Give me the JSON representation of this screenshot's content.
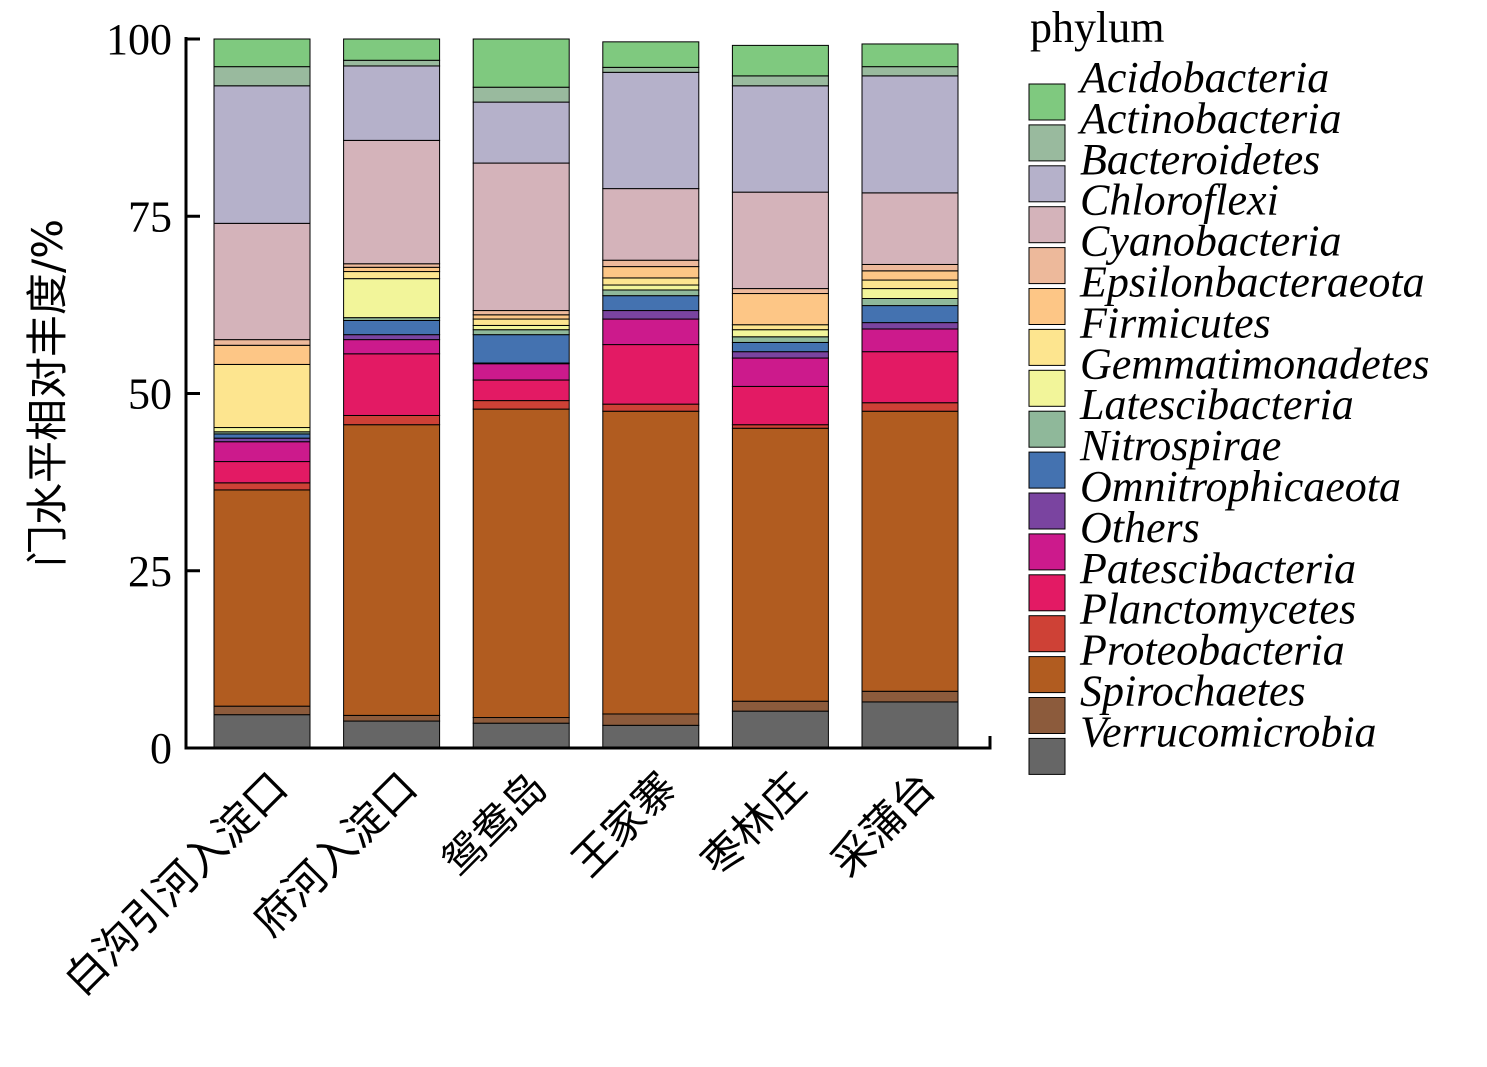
{
  "chart_data": {
    "type": "bar",
    "stacked": true,
    "ylabel": "门水平相对丰度/%",
    "ylim": [
      0,
      100
    ],
    "yticks": [
      "0",
      "25",
      "50",
      "75",
      "100"
    ],
    "legend_title": "phylum",
    "legend_position": "right",
    "categories": [
      "白沟引河入淀口",
      "府河入淀口",
      "鸳鸯岛",
      "王家寨",
      "枣林庄",
      "采蒲台"
    ],
    "series": [
      {
        "name": "Verrucomicrobia",
        "color": "#666666",
        "values": [
          4.7,
          3.8,
          3.5,
          3.2,
          5.2,
          6.5
        ]
      },
      {
        "name": "Spirochaetes",
        "color": "#8C5B3C",
        "values": [
          1.2,
          0.8,
          0.8,
          1.6,
          1.4,
          1.5
        ]
      },
      {
        "name": "Proteobacteria",
        "color": "#B15C20",
        "values": [
          30.5,
          41.0,
          43.5,
          42.7,
          38.5,
          39.5
        ]
      },
      {
        "name": "Planctomycetes",
        "color": "#CE4136",
        "values": [
          1.0,
          1.3,
          1.2,
          1.0,
          0.5,
          1.2
        ]
      },
      {
        "name": "Patescibacteria",
        "color": "#E31A64",
        "values": [
          3.0,
          8.7,
          2.9,
          8.4,
          5.4,
          7.2
        ]
      },
      {
        "name": "Others",
        "color": "#CC1A8C",
        "values": [
          2.8,
          2.0,
          2.3,
          3.6,
          4.0,
          3.2
        ]
      },
      {
        "name": "Omnitrophicaeota",
        "color": "#7A44A0",
        "values": [
          0.5,
          0.7,
          0.1,
          1.2,
          0.9,
          0.9
        ]
      },
      {
        "name": "Nitrospirae",
        "color": "#4472B0",
        "values": [
          0.6,
          2.0,
          4.0,
          2.1,
          1.3,
          2.4
        ]
      },
      {
        "name": "Latescibacteria",
        "color": "#8FB89A",
        "values": [
          0.3,
          0.4,
          0.7,
          0.8,
          0.8,
          1.0
        ]
      },
      {
        "name": "Gemmatimonadetes",
        "color": "#F2F59A",
        "values": [
          0.6,
          5.5,
          0.6,
          0.7,
          1.0,
          1.4
        ]
      },
      {
        "name": "Firmicutes",
        "color": "#FDE58F",
        "values": [
          8.9,
          1.0,
          0.9,
          1.0,
          0.7,
          1.2
        ]
      },
      {
        "name": "Epsilonbacteraeota",
        "color": "#FDC686",
        "values": [
          2.7,
          0.6,
          0.6,
          1.6,
          4.4,
          1.3
        ]
      },
      {
        "name": "Cyanobacteria",
        "color": "#EDB99B",
        "values": [
          0.8,
          0.5,
          0.6,
          0.9,
          0.7,
          0.9
        ]
      },
      {
        "name": "Chloroflexi",
        "color": "#D4B3BA",
        "values": [
          16.4,
          17.4,
          20.8,
          10.1,
          13.6,
          10.1
        ]
      },
      {
        "name": "Bacteroidetes",
        "color": "#B5B1CA",
        "values": [
          19.4,
          10.5,
          8.6,
          16.4,
          15.0,
          16.5
        ]
      },
      {
        "name": "Actinobacteria",
        "color": "#99BA9E",
        "values": [
          2.7,
          0.8,
          2.1,
          0.7,
          1.4,
          1.3
        ]
      },
      {
        "name": "Acidobacteria",
        "color": "#7FC97F",
        "values": [
          3.9,
          3.0,
          6.8,
          3.6,
          4.3,
          3.2
        ]
      }
    ]
  }
}
